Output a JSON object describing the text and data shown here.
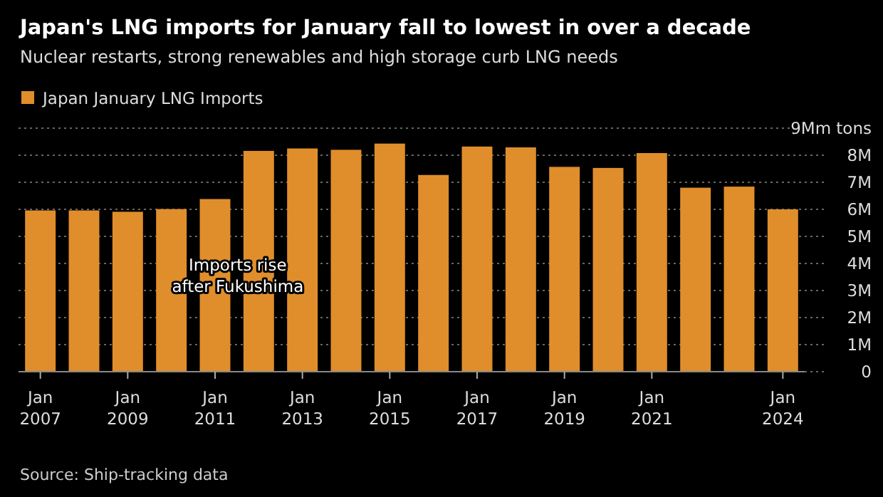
{
  "chart_data": {
    "type": "bar",
    "title": "Japan's LNG imports for January fall to lowest in over a decade",
    "subtitle": "Nuclear restarts, strong renewables and high storage curb LNG needs",
    "categories": [
      "Jan 2007",
      null,
      "Jan 2009",
      null,
      "Jan 2011",
      null,
      "Jan 2013",
      null,
      "Jan 2015",
      null,
      "Jan 2017",
      null,
      "Jan 2019",
      null,
      "Jan 2021",
      null,
      null,
      "Jan 2024"
    ],
    "series": [
      {
        "name": "Japan January LNG Imports",
        "color": "#e08e2b",
        "values": [
          5.96,
          5.96,
          5.91,
          6.01,
          6.38,
          8.16,
          8.25,
          8.2,
          8.43,
          7.27,
          8.32,
          8.29,
          7.57,
          7.53,
          8.08,
          6.8,
          6.84,
          6.0
        ]
      }
    ],
    "ylim": [
      0,
      9
    ],
    "yticks": [
      0,
      {
        "value": 1,
        "label": "1M"
      },
      {
        "value": 2,
        "label": "2M"
      },
      {
        "value": 3,
        "label": "3M"
      },
      {
        "value": 4,
        "label": "4M"
      },
      {
        "value": 5,
        "label": "5M"
      },
      {
        "value": 6,
        "label": "6M"
      },
      {
        "value": 7,
        "label": "7M"
      },
      {
        "value": 8,
        "label": "8M"
      },
      {
        "value": 9,
        "label": "9Mm tons"
      }
    ],
    "grid": "y",
    "legend": "top left",
    "annotations": [
      "Imports rise after Fukushima",
      "Source: Ship-tracking data"
    ]
  }
}
